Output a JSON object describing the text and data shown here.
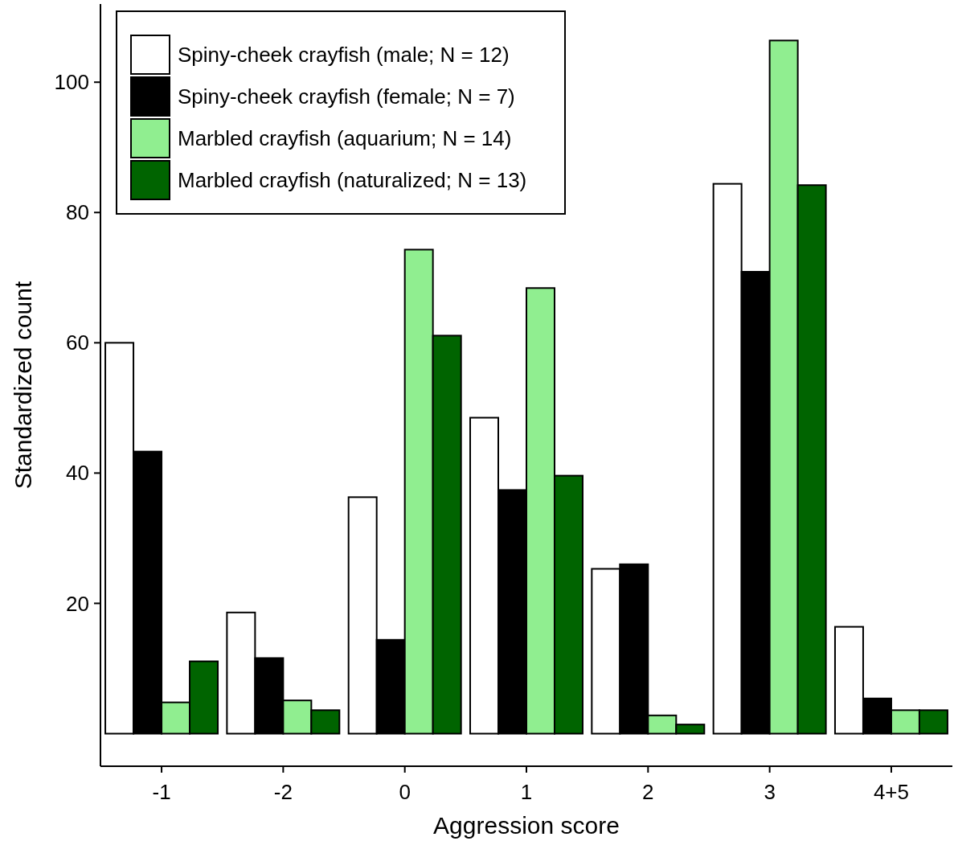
{
  "chart_data": {
    "type": "bar",
    "xlabel": "Aggression score",
    "ylabel": "Standardized count",
    "categories": [
      "-1",
      "-2",
      "0",
      "1",
      "2",
      "3",
      "4+5"
    ],
    "series": [
      {
        "name": "Spiny-cheek crayfish (male; N = 12)",
        "color": "#ffffff",
        "values": [
          60,
          18.6,
          36.3,
          48.5,
          25.3,
          84.4,
          16.4
        ]
      },
      {
        "name": "Spiny-cheek crayfish (female; N = 7)",
        "color": "#000000",
        "values": [
          43.3,
          11.6,
          14.4,
          37.4,
          26,
          70.9,
          5.4
        ]
      },
      {
        "name": "Marbled crayfish (aquarium; N = 14)",
        "color": "#90ee90",
        "values": [
          4.8,
          5.1,
          74.3,
          68.4,
          2.8,
          106.4,
          3.6
        ]
      },
      {
        "name": "Marbled crayfish (naturalized; N = 13)",
        "color": "#006400",
        "values": [
          11.1,
          3.6,
          61.1,
          39.6,
          1.4,
          84.2,
          3.6
        ]
      }
    ],
    "ylim": [
      -5,
      112
    ],
    "yticks": [
      20,
      40,
      60,
      80,
      100
    ],
    "grid": false,
    "legend": "top left"
  }
}
